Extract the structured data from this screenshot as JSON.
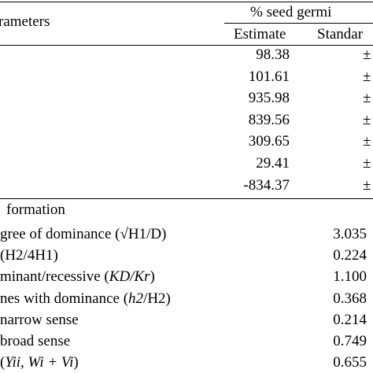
{
  "header": {
    "parameters": "rameters",
    "group": "% seed germi",
    "estimate": "Estimate",
    "standard": "Standar"
  },
  "rows": [
    {
      "value": "98.38",
      "pm": "±"
    },
    {
      "value": "101.61",
      "pm": "±"
    },
    {
      "value": "935.98",
      "pm": "±"
    },
    {
      "value": "839.56",
      "pm": "±"
    },
    {
      "value": "309.65",
      "pm": "±"
    },
    {
      "value": "29.41",
      "pm": "±"
    },
    {
      "value": "-834.37",
      "pm": "±"
    }
  ],
  "section": "formation",
  "info_rows": [
    {
      "label": [
        {
          "text": "gree of dominance (√H1/D)",
          "italic": false
        }
      ],
      "value": "3.035"
    },
    {
      "label": [
        {
          "text": "(H2/4H1)",
          "italic": false
        }
      ],
      "value": "0.224"
    },
    {
      "label": [
        {
          "text": "minant/recessive (",
          "italic": false
        },
        {
          "text": "KD/Kr",
          "italic": true
        },
        {
          "text": ")",
          "italic": false
        }
      ],
      "value": "1.100"
    },
    {
      "label": [
        {
          "text": "nes with dominance (",
          "italic": false
        },
        {
          "text": "h2",
          "italic": true
        },
        {
          "text": "/H2)",
          "italic": false
        }
      ],
      "value": "0.368"
    },
    {
      "label": [
        {
          "text": "narrow sense",
          "italic": false
        }
      ],
      "value": "0.214"
    },
    {
      "label": [
        {
          "text": "broad sense",
          "italic": false
        }
      ],
      "value": "0.749"
    },
    {
      "label": [
        {
          "text": "(",
          "italic": false
        },
        {
          "text": "Yii, Wi + Vi",
          "italic": true
        },
        {
          "text": ")",
          "italic": false
        }
      ],
      "value": "0.655"
    }
  ]
}
